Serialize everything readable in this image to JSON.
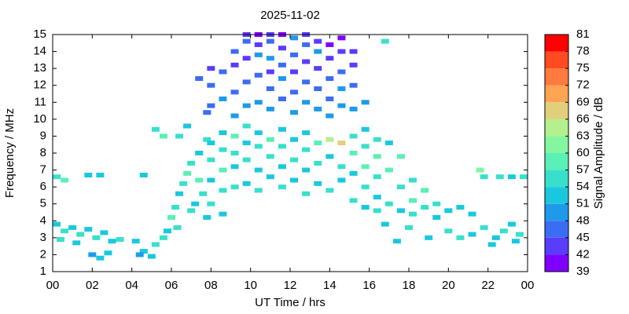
{
  "chart_data": {
    "type": "heatmap-scatter",
    "title": "2025-11-02",
    "xlabel": "UT Time / hrs",
    "ylabel": "Frequency / MHz",
    "colorbar_label": "Signal Amplitude / dB",
    "xlim": [
      0,
      24
    ],
    "ylim": [
      1,
      15
    ],
    "xticks": [
      {
        "value": 0,
        "label": "00"
      },
      {
        "value": 2,
        "label": "02"
      },
      {
        "value": 4,
        "label": "04"
      },
      {
        "value": 6,
        "label": "06"
      },
      {
        "value": 8,
        "label": "08"
      },
      10,
      12,
      14,
      16,
      18,
      20,
      22,
      {
        "value": 24,
        "label": "00"
      }
    ],
    "yticks": [
      1,
      2,
      3,
      4,
      5,
      6,
      7,
      8,
      9,
      10,
      11,
      12,
      13,
      14,
      15
    ],
    "zlim": [
      39,
      81
    ],
    "zticks": [
      39,
      42,
      45,
      48,
      51,
      54,
      57,
      60,
      63,
      66,
      69,
      72,
      75,
      78,
      81
    ],
    "colors": [
      "#8000ff",
      "#5a3cfc",
      "#3c6cf4",
      "#1e9aea",
      "#1ac8de",
      "#38e0cc",
      "#5af0b6",
      "#84f6a0",
      "#b4f08c",
      "#e2cf7c",
      "#ffa452",
      "#ff7a3e",
      "#ff4a22",
      "#ff0000"
    ],
    "points": [
      {
        "x": 0.2,
        "y": 3.8,
        "value": 51
      },
      {
        "x": 0.6,
        "y": 3.4,
        "value": 54
      },
      {
        "x": 1.0,
        "y": 3.6,
        "value": 51
      },
      {
        "x": 1.4,
        "y": 3.2,
        "value": 54
      },
      {
        "x": 1.8,
        "y": 3.5,
        "value": 51
      },
      {
        "x": 2.2,
        "y": 3.0,
        "value": 54
      },
      {
        "x": 2.6,
        "y": 3.3,
        "value": 51
      },
      {
        "x": 3.0,
        "y": 2.8,
        "value": 51
      },
      {
        "x": 0.4,
        "y": 2.9,
        "value": 54
      },
      {
        "x": 1.2,
        "y": 2.7,
        "value": 51
      },
      {
        "x": 2.0,
        "y": 2.0,
        "value": 48
      },
      {
        "x": 2.4,
        "y": 1.8,
        "value": 51
      },
      {
        "x": 2.8,
        "y": 2.1,
        "value": 51
      },
      {
        "x": 3.4,
        "y": 2.9,
        "value": 54
      },
      {
        "x": 4.2,
        "y": 2.8,
        "value": 51
      },
      {
        "x": 4.6,
        "y": 2.2,
        "value": 51
      },
      {
        "x": 5.0,
        "y": 1.9,
        "value": 51
      },
      {
        "x": 4.4,
        "y": 2.0,
        "value": 48
      },
      {
        "x": 5.2,
        "y": 2.6,
        "value": 54
      },
      {
        "x": 5.6,
        "y": 3.0,
        "value": 54
      },
      {
        "x": 0.2,
        "y": 6.6,
        "value": 54
      },
      {
        "x": 0.6,
        "y": 6.4,
        "value": 57
      },
      {
        "x": 1.8,
        "y": 6.7,
        "value": 51
      },
      {
        "x": 2.4,
        "y": 6.7,
        "value": 51
      },
      {
        "x": 4.6,
        "y": 6.7,
        "value": 51
      },
      {
        "x": 5.2,
        "y": 9.4,
        "value": 54
      },
      {
        "x": 5.6,
        "y": 9.0,
        "value": 57
      },
      {
        "x": 5.8,
        "y": 3.4,
        "value": 51
      },
      {
        "x": 6.0,
        "y": 4.2,
        "value": 57
      },
      {
        "x": 6.2,
        "y": 4.8,
        "value": 54
      },
      {
        "x": 6.4,
        "y": 5.6,
        "value": 51
      },
      {
        "x": 6.6,
        "y": 6.2,
        "value": 54
      },
      {
        "x": 6.8,
        "y": 6.8,
        "value": 57
      },
      {
        "x": 6.3,
        "y": 3.6,
        "value": 54
      },
      {
        "x": 7.0,
        "y": 7.4,
        "value": 54
      },
      {
        "x": 7.2,
        "y": 5.0,
        "value": 51
      },
      {
        "x": 7.4,
        "y": 8.0,
        "value": 51
      },
      {
        "x": 7.6,
        "y": 5.6,
        "value": 54
      },
      {
        "x": 7.8,
        "y": 8.8,
        "value": 54
      },
      {
        "x": 7.4,
        "y": 6.4,
        "value": 57
      },
      {
        "x": 7.0,
        "y": 4.6,
        "value": 54
      },
      {
        "x": 6.4,
        "y": 9.0,
        "value": 54
      },
      {
        "x": 6.8,
        "y": 9.6,
        "value": 51
      },
      {
        "x": 7.4,
        "y": 12.4,
        "value": 45
      },
      {
        "x": 7.8,
        "y": 10.4,
        "value": 45
      },
      {
        "x": 7.8,
        "y": 4.2,
        "value": 51
      },
      {
        "x": 8.0,
        "y": 5.0,
        "value": 54
      },
      {
        "x": 8.0,
        "y": 6.4,
        "value": 51
      },
      {
        "x": 8.0,
        "y": 7.6,
        "value": 54
      },
      {
        "x": 8.0,
        "y": 8.6,
        "value": 51
      },
      {
        "x": 8.0,
        "y": 10.8,
        "value": 45
      },
      {
        "x": 8.0,
        "y": 12.0,
        "value": 45
      },
      {
        "x": 8.0,
        "y": 13.0,
        "value": 42
      },
      {
        "x": 8.6,
        "y": 4.4,
        "value": 51
      },
      {
        "x": 8.6,
        "y": 5.8,
        "value": 54
      },
      {
        "x": 8.6,
        "y": 7.0,
        "value": 57
      },
      {
        "x": 8.6,
        "y": 8.2,
        "value": 54
      },
      {
        "x": 8.6,
        "y": 9.2,
        "value": 51
      },
      {
        "x": 8.6,
        "y": 11.2,
        "value": 48
      },
      {
        "x": 8.6,
        "y": 12.8,
        "value": 45
      },
      {
        "x": 9.2,
        "y": 6.0,
        "value": 54
      },
      {
        "x": 9.2,
        "y": 7.2,
        "value": 51
      },
      {
        "x": 9.2,
        "y": 8.0,
        "value": 54
      },
      {
        "x": 9.2,
        "y": 9.0,
        "value": 57
      },
      {
        "x": 9.2,
        "y": 10.2,
        "value": 48
      },
      {
        "x": 9.2,
        "y": 11.6,
        "value": 45
      },
      {
        "x": 9.2,
        "y": 13.2,
        "value": 42
      },
      {
        "x": 9.2,
        "y": 14.0,
        "value": 45
      },
      {
        "x": 9.8,
        "y": 6.2,
        "value": 51
      },
      {
        "x": 9.8,
        "y": 7.6,
        "value": 54
      },
      {
        "x": 9.8,
        "y": 8.6,
        "value": 51
      },
      {
        "x": 9.8,
        "y": 9.6,
        "value": 54
      },
      {
        "x": 9.8,
        "y": 10.8,
        "value": 48
      },
      {
        "x": 9.8,
        "y": 12.2,
        "value": 45
      },
      {
        "x": 9.8,
        "y": 13.6,
        "value": 42
      },
      {
        "x": 9.8,
        "y": 14.6,
        "value": 45
      },
      {
        "x": 9.8,
        "y": 15.0,
        "value": 42
      },
      {
        "x": 10.4,
        "y": 5.8,
        "value": 54
      },
      {
        "x": 10.4,
        "y": 7.0,
        "value": 51
      },
      {
        "x": 10.4,
        "y": 8.4,
        "value": 54
      },
      {
        "x": 10.4,
        "y": 9.2,
        "value": 51
      },
      {
        "x": 10.4,
        "y": 11.0,
        "value": 48
      },
      {
        "x": 10.4,
        "y": 12.6,
        "value": 45
      },
      {
        "x": 10.4,
        "y": 13.8,
        "value": 48
      },
      {
        "x": 10.4,
        "y": 14.4,
        "value": 42
      },
      {
        "x": 10.4,
        "y": 15.0,
        "value": 39
      },
      {
        "x": 11.0,
        "y": 6.6,
        "value": 51
      },
      {
        "x": 11.0,
        "y": 7.8,
        "value": 54
      },
      {
        "x": 11.0,
        "y": 8.8,
        "value": 57
      },
      {
        "x": 11.0,
        "y": 10.6,
        "value": 48
      },
      {
        "x": 11.0,
        "y": 11.8,
        "value": 45
      },
      {
        "x": 11.0,
        "y": 12.8,
        "value": 42
      },
      {
        "x": 11.0,
        "y": 13.6,
        "value": 48
      },
      {
        "x": 11.0,
        "y": 14.6,
        "value": 45
      },
      {
        "x": 11.0,
        "y": 15.0,
        "value": 42
      },
      {
        "x": 11.6,
        "y": 6.0,
        "value": 54
      },
      {
        "x": 11.6,
        "y": 7.2,
        "value": 51
      },
      {
        "x": 11.6,
        "y": 8.4,
        "value": 54
      },
      {
        "x": 11.6,
        "y": 9.4,
        "value": 51
      },
      {
        "x": 11.6,
        "y": 11.2,
        "value": 45
      },
      {
        "x": 11.6,
        "y": 12.4,
        "value": 48
      },
      {
        "x": 11.6,
        "y": 13.2,
        "value": 45
      },
      {
        "x": 11.6,
        "y": 14.2,
        "value": 42
      },
      {
        "x": 11.6,
        "y": 15.0,
        "value": 39
      },
      {
        "x": 12.2,
        "y": 6.4,
        "value": 51
      },
      {
        "x": 12.2,
        "y": 7.6,
        "value": 54
      },
      {
        "x": 12.2,
        "y": 8.8,
        "value": 51
      },
      {
        "x": 12.2,
        "y": 10.4,
        "value": 48
      },
      {
        "x": 12.2,
        "y": 11.6,
        "value": 45
      },
      {
        "x": 12.2,
        "y": 12.8,
        "value": 42
      },
      {
        "x": 12.2,
        "y": 13.8,
        "value": 45
      },
      {
        "x": 12.2,
        "y": 14.8,
        "value": 48
      },
      {
        "x": 12.8,
        "y": 5.6,
        "value": 54
      },
      {
        "x": 12.8,
        "y": 7.0,
        "value": 51
      },
      {
        "x": 12.8,
        "y": 8.2,
        "value": 54
      },
      {
        "x": 12.8,
        "y": 9.2,
        "value": 51
      },
      {
        "x": 12.8,
        "y": 11.0,
        "value": 48
      },
      {
        "x": 12.8,
        "y": 12.2,
        "value": 45
      },
      {
        "x": 12.8,
        "y": 13.4,
        "value": 42
      },
      {
        "x": 12.8,
        "y": 14.4,
        "value": 45
      },
      {
        "x": 12.8,
        "y": 15.0,
        "value": 42
      },
      {
        "x": 13.4,
        "y": 6.2,
        "value": 51
      },
      {
        "x": 13.4,
        "y": 7.4,
        "value": 54
      },
      {
        "x": 13.4,
        "y": 8.6,
        "value": 57
      },
      {
        "x": 13.4,
        "y": 10.6,
        "value": 48
      },
      {
        "x": 13.4,
        "y": 11.8,
        "value": 45
      },
      {
        "x": 13.4,
        "y": 13.0,
        "value": 42
      },
      {
        "x": 13.4,
        "y": 14.0,
        "value": 48
      },
      {
        "x": 13.4,
        "y": 14.6,
        "value": 42
      },
      {
        "x": 14.0,
        "y": 5.8,
        "value": 54
      },
      {
        "x": 14.0,
        "y": 7.8,
        "value": 51
      },
      {
        "x": 14.0,
        "y": 8.8,
        "value": 63
      },
      {
        "x": 14.0,
        "y": 10.2,
        "value": 48
      },
      {
        "x": 14.0,
        "y": 11.2,
        "value": 45
      },
      {
        "x": 14.0,
        "y": 12.4,
        "value": 45
      },
      {
        "x": 14.0,
        "y": 13.6,
        "value": 42
      },
      {
        "x": 14.0,
        "y": 14.4,
        "value": 39
      },
      {
        "x": 14.6,
        "y": 6.4,
        "value": 51
      },
      {
        "x": 14.6,
        "y": 7.2,
        "value": 54
      },
      {
        "x": 14.6,
        "y": 8.6,
        "value": 66
      },
      {
        "x": 14.6,
        "y": 10.8,
        "value": 48
      },
      {
        "x": 14.6,
        "y": 11.8,
        "value": 48
      },
      {
        "x": 14.6,
        "y": 12.8,
        "value": 45
      },
      {
        "x": 14.6,
        "y": 14.0,
        "value": 42
      },
      {
        "x": 14.6,
        "y": 14.8,
        "value": 39
      },
      {
        "x": 15.2,
        "y": 5.2,
        "value": 54
      },
      {
        "x": 15.2,
        "y": 6.8,
        "value": 51
      },
      {
        "x": 15.2,
        "y": 8.0,
        "value": 57
      },
      {
        "x": 15.2,
        "y": 9.0,
        "value": 54
      },
      {
        "x": 15.2,
        "y": 10.6,
        "value": 48
      },
      {
        "x": 15.2,
        "y": 12.0,
        "value": 45
      },
      {
        "x": 15.2,
        "y": 13.2,
        "value": 42
      },
      {
        "x": 15.2,
        "y": 14.0,
        "value": 42
      },
      {
        "x": 15.8,
        "y": 4.8,
        "value": 51
      },
      {
        "x": 15.8,
        "y": 6.0,
        "value": 54
      },
      {
        "x": 15.8,
        "y": 7.2,
        "value": 57
      },
      {
        "x": 15.8,
        "y": 8.4,
        "value": 54
      },
      {
        "x": 15.8,
        "y": 9.4,
        "value": 51
      },
      {
        "x": 15.8,
        "y": 11.0,
        "value": 48
      },
      {
        "x": 16.4,
        "y": 4.6,
        "value": 54
      },
      {
        "x": 16.4,
        "y": 5.4,
        "value": 51
      },
      {
        "x": 16.4,
        "y": 6.6,
        "value": 54
      },
      {
        "x": 16.4,
        "y": 7.8,
        "value": 57
      },
      {
        "x": 16.4,
        "y": 8.8,
        "value": 54
      },
      {
        "x": 17.0,
        "y": 5.0,
        "value": 54
      },
      {
        "x": 17.0,
        "y": 7.0,
        "value": 57
      },
      {
        "x": 17.0,
        "y": 8.6,
        "value": 51
      },
      {
        "x": 17.6,
        "y": 4.6,
        "value": 51
      },
      {
        "x": 17.6,
        "y": 6.0,
        "value": 54
      },
      {
        "x": 17.6,
        "y": 7.8,
        "value": 57
      },
      {
        "x": 18.2,
        "y": 4.4,
        "value": 54
      },
      {
        "x": 18.2,
        "y": 5.2,
        "value": 57
      },
      {
        "x": 18.2,
        "y": 6.4,
        "value": 54
      },
      {
        "x": 18.8,
        "y": 4.8,
        "value": 54
      },
      {
        "x": 18.8,
        "y": 5.8,
        "value": 57
      },
      {
        "x": 19.4,
        "y": 4.2,
        "value": 51
      },
      {
        "x": 19.4,
        "y": 5.0,
        "value": 54
      },
      {
        "x": 20.0,
        "y": 4.6,
        "value": 51
      },
      {
        "x": 20.0,
        "y": 3.4,
        "value": 54
      },
      {
        "x": 20.6,
        "y": 4.8,
        "value": 51
      },
      {
        "x": 20.6,
        "y": 3.0,
        "value": 54
      },
      {
        "x": 21.2,
        "y": 4.4,
        "value": 51
      },
      {
        "x": 21.2,
        "y": 3.2,
        "value": 51
      },
      {
        "x": 19.0,
        "y": 3.0,
        "value": 51
      },
      {
        "x": 18.0,
        "y": 3.6,
        "value": 54
      },
      {
        "x": 16.8,
        "y": 3.8,
        "value": 51
      },
      {
        "x": 17.4,
        "y": 2.8,
        "value": 51
      },
      {
        "x": 21.8,
        "y": 3.6,
        "value": 54
      },
      {
        "x": 22.4,
        "y": 3.0,
        "value": 51
      },
      {
        "x": 22.8,
        "y": 3.4,
        "value": 54
      },
      {
        "x": 23.2,
        "y": 3.8,
        "value": 51
      },
      {
        "x": 23.6,
        "y": 3.2,
        "value": 54
      },
      {
        "x": 22.2,
        "y": 2.6,
        "value": 51
      },
      {
        "x": 23.4,
        "y": 2.8,
        "value": 51
      },
      {
        "x": 21.8,
        "y": 6.6,
        "value": 54
      },
      {
        "x": 22.6,
        "y": 6.6,
        "value": 54
      },
      {
        "x": 23.2,
        "y": 6.6,
        "value": 51
      },
      {
        "x": 23.8,
        "y": 6.6,
        "value": 54
      },
      {
        "x": 21.6,
        "y": 7.0,
        "value": 60
      },
      {
        "x": 16.8,
        "y": 14.6,
        "value": 54
      }
    ]
  }
}
